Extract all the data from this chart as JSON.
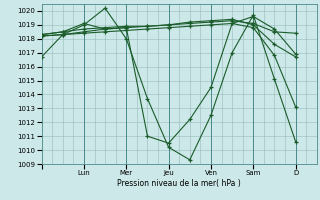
{
  "background_color": "#cce8e8",
  "grid_color": "#99bbbb",
  "line_color": "#1a5c2a",
  "vline_color": "#4a8a8a",
  "ylabel": "Pression niveau de la mer( hPa )",
  "ylim": [
    1009,
    1020.5
  ],
  "ytick_min": 1009,
  "ytick_max": 1020,
  "xlim": [
    0,
    13
  ],
  "xtick_labels": [
    "",
    "Lun",
    "Mer",
    "Jeu",
    "Ven",
    "Sam",
    "D"
  ],
  "xtick_positions": [
    0,
    2,
    4,
    6,
    8,
    10,
    12
  ],
  "vlines": [
    2,
    4,
    6,
    8,
    10,
    12
  ],
  "series": [
    {
      "x": [
        0,
        1,
        2,
        3,
        4,
        5,
        6,
        7,
        8,
        9,
        10,
        11,
        12
      ],
      "y": [
        1016.7,
        1018.3,
        1019.0,
        1020.2,
        1018.0,
        1013.7,
        1010.2,
        1009.3,
        1012.5,
        1017.0,
        1019.7,
        1015.1,
        1010.6
      ]
    },
    {
      "x": [
        0,
        1,
        2,
        3,
        4,
        5,
        6,
        7,
        8,
        9,
        10,
        11,
        12
      ],
      "y": [
        1018.3,
        1018.5,
        1019.1,
        1018.7,
        1018.8,
        1011.0,
        1010.5,
        1012.2,
        1014.5,
        1019.1,
        1019.6,
        1018.7,
        1016.9
      ]
    },
    {
      "x": [
        0,
        1,
        2,
        3,
        4,
        5,
        6,
        7,
        8,
        9,
        10,
        11,
        12
      ],
      "y": [
        1018.3,
        1018.5,
        1018.7,
        1018.8,
        1018.9,
        1018.9,
        1019.0,
        1019.1,
        1019.2,
        1019.3,
        1019.1,
        1018.5,
        1018.4
      ]
    },
    {
      "x": [
        0,
        1,
        2,
        3,
        4,
        5,
        6,
        7,
        8,
        9,
        10,
        11,
        12
      ],
      "y": [
        1018.2,
        1018.3,
        1018.5,
        1018.7,
        1018.8,
        1018.9,
        1019.0,
        1019.2,
        1019.3,
        1019.4,
        1019.0,
        1017.6,
        1016.7
      ]
    },
    {
      "x": [
        0,
        1,
        2,
        3,
        4,
        5,
        6,
        7,
        8,
        9,
        10,
        11,
        12
      ],
      "y": [
        1018.2,
        1018.3,
        1018.4,
        1018.5,
        1018.6,
        1018.7,
        1018.8,
        1018.9,
        1019.0,
        1019.1,
        1018.8,
        1016.8,
        1013.1
      ]
    }
  ]
}
